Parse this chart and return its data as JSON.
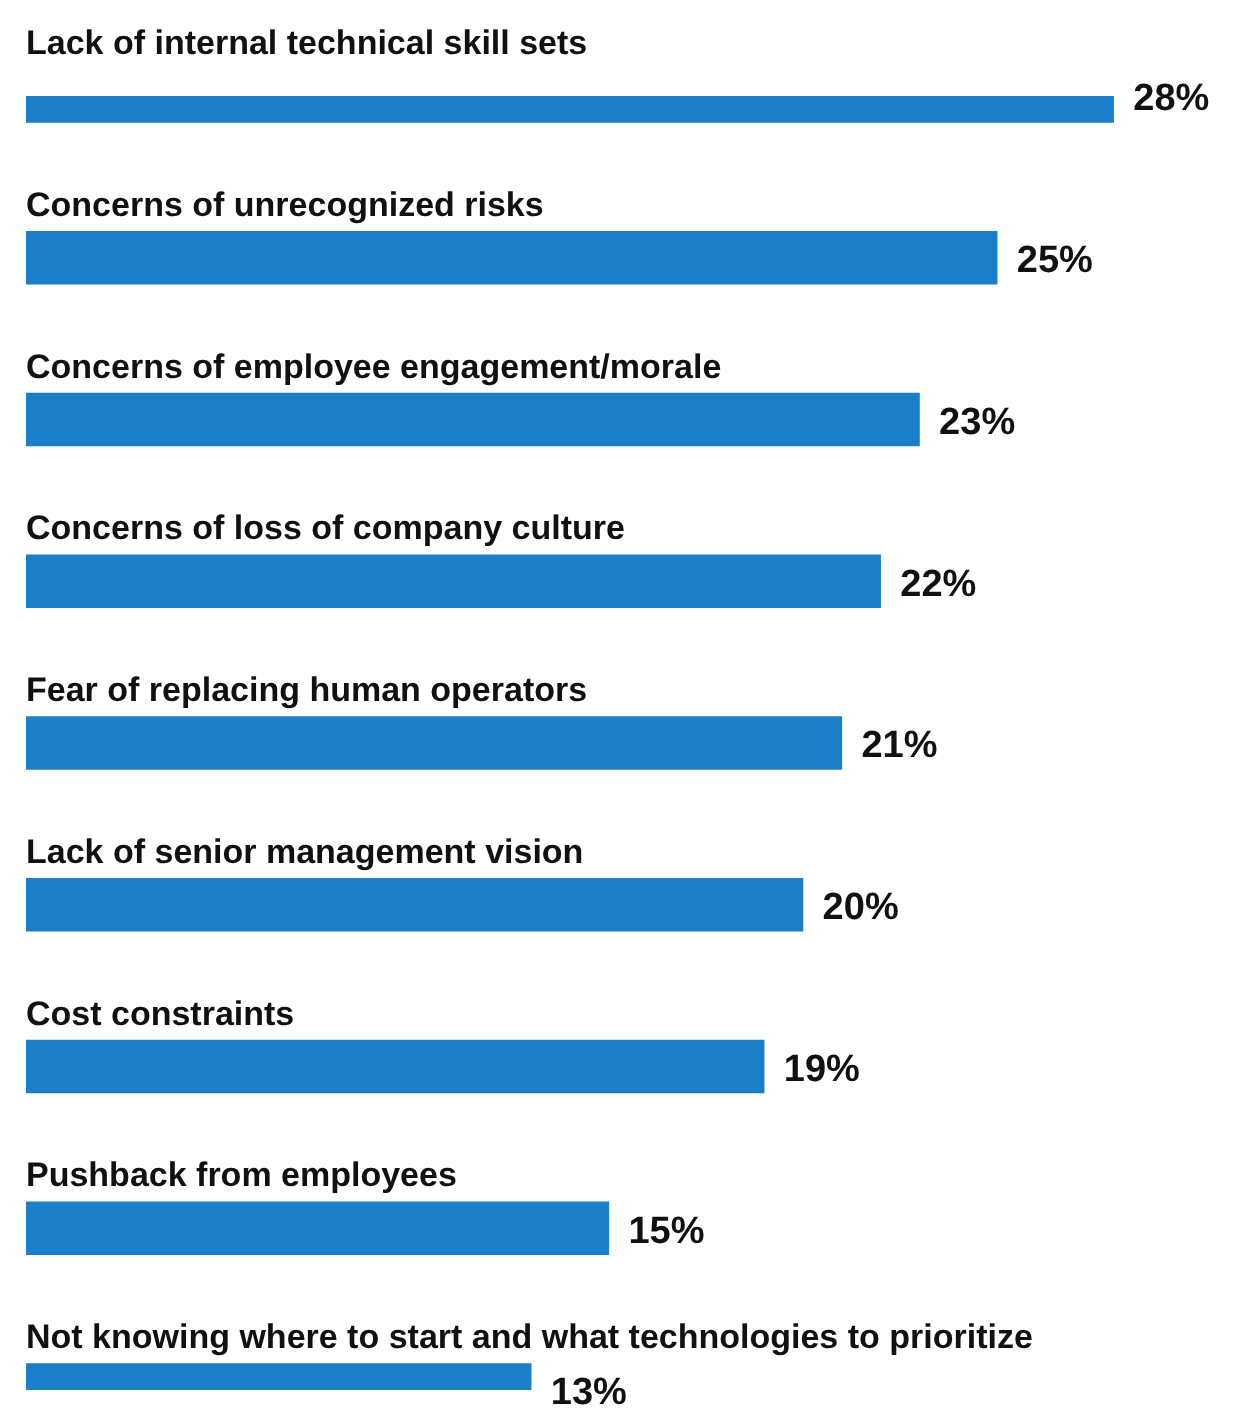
{
  "chart_data": {
    "type": "bar",
    "orientation": "horizontal",
    "categories": [
      "Lack of internal technical skill sets",
      "Concerns of unrecognized risks",
      "Concerns of employee engagement/morale",
      "Concerns of loss of company culture",
      "Fear of replacing human operators",
      "Lack of senior management vision",
      "Cost constraints",
      "Pushback from employees",
      "Not knowing where to start and what technologies to prioritize"
    ],
    "values": [
      28,
      25,
      23,
      22,
      21,
      20,
      19,
      15,
      13
    ],
    "value_labels": [
      "28%",
      "25%",
      "23%",
      "22%",
      "21%",
      "20%",
      "19%",
      "15%",
      "13%"
    ],
    "color": "#1a7fc8"
  }
}
